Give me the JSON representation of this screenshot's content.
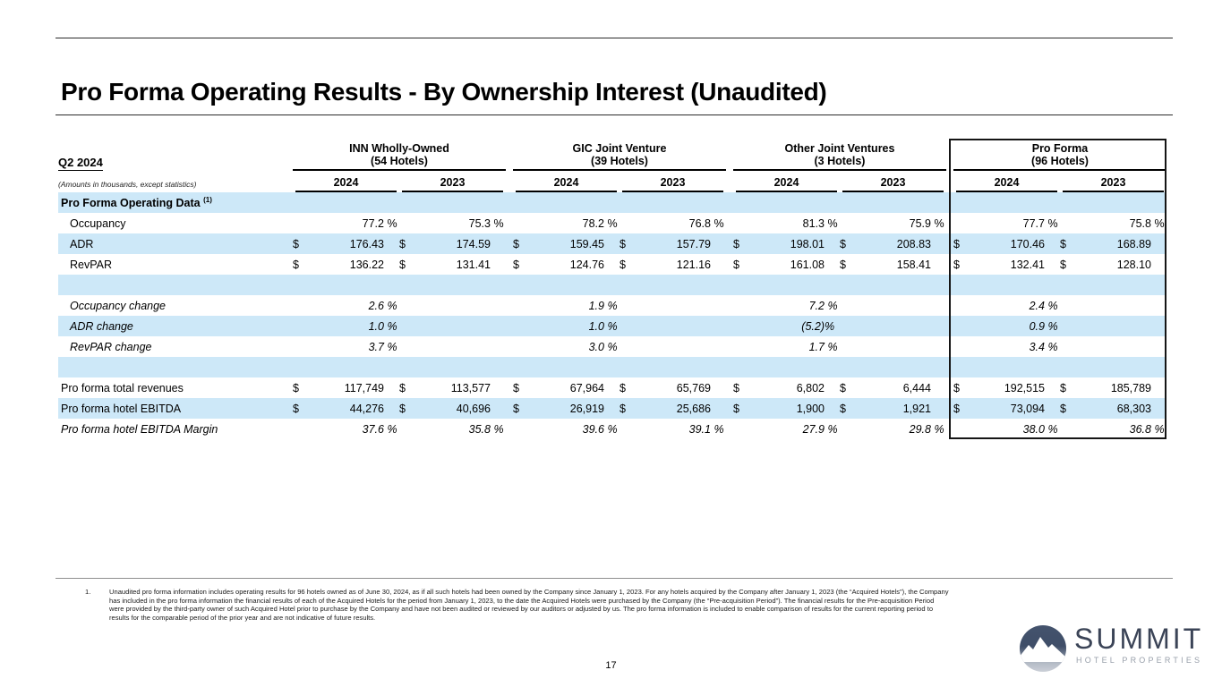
{
  "page": {
    "title": "Pro Forma Operating Results - By Ownership Interest (Unaudited)",
    "page_number": "17"
  },
  "colors": {
    "row_shade": "#cde8f8",
    "logo_navy": "#3e4d68",
    "logo_gray": "#99a0ab"
  },
  "table": {
    "period_label": "Q2 2024",
    "amounts_note": "(Amounts in thousands, except statistics)",
    "year_headers": [
      "2024",
      "2023"
    ],
    "groups": [
      {
        "name": "INN Wholly-Owned",
        "hotels": "(54 Hotels)",
        "boxed": false
      },
      {
        "name": "GIC Joint Venture",
        "hotels": "(39 Hotels)",
        "boxed": false
      },
      {
        "name": "Other Joint Ventures",
        "hotels": "(3 Hotels)",
        "boxed": false
      },
      {
        "name": "Pro Forma",
        "hotels": "(96 Hotels)",
        "boxed": true
      }
    ],
    "rows": [
      {
        "label": "Pro Forma Operating Data",
        "sup": "(1)",
        "section": true,
        "shade": true,
        "indent": false,
        "italic": false,
        "cells": []
      },
      {
        "label": "Occupancy",
        "shade": false,
        "indent": true,
        "italic": false,
        "cells": [
          {
            "v": "77.2",
            "s": " %"
          },
          {
            "v": "75.3",
            "s": " %"
          },
          {
            "v": "78.2",
            "s": " %"
          },
          {
            "v": "76.8",
            "s": " %"
          },
          {
            "v": "81.3",
            "s": " %"
          },
          {
            "v": "75.9",
            "s": " %"
          },
          {
            "v": "77.7",
            "s": " %"
          },
          {
            "v": "75.8",
            "s": " %"
          }
        ]
      },
      {
        "label": "ADR",
        "shade": true,
        "indent": true,
        "italic": false,
        "cells": [
          {
            "d": "$",
            "v": "176.43"
          },
          {
            "d": "$",
            "v": "174.59"
          },
          {
            "d": "$",
            "v": "159.45"
          },
          {
            "d": "$",
            "v": "157.79"
          },
          {
            "d": "$",
            "v": "198.01"
          },
          {
            "d": "$",
            "v": "208.83"
          },
          {
            "d": "$",
            "v": "170.46"
          },
          {
            "d": "$",
            "v": "168.89"
          }
        ]
      },
      {
        "label": "RevPAR",
        "shade": false,
        "indent": true,
        "italic": false,
        "cells": [
          {
            "d": "$",
            "v": "136.22"
          },
          {
            "d": "$",
            "v": "131.41"
          },
          {
            "d": "$",
            "v": "124.76"
          },
          {
            "d": "$",
            "v": "121.16"
          },
          {
            "d": "$",
            "v": "161.08"
          },
          {
            "d": "$",
            "v": "158.41"
          },
          {
            "d": "$",
            "v": "132.41"
          },
          {
            "d": "$",
            "v": "128.10"
          }
        ]
      },
      {
        "label": "",
        "shade": true,
        "indent": false,
        "italic": false,
        "cells": []
      },
      {
        "label": "Occupancy change",
        "shade": false,
        "indent": true,
        "italic": true,
        "cells": [
          {
            "v": "2.6",
            "s": " %"
          },
          null,
          {
            "v": "1.9",
            "s": " %"
          },
          null,
          {
            "v": "7.2",
            "s": " %"
          },
          null,
          {
            "v": "2.4",
            "s": " %"
          },
          null
        ]
      },
      {
        "label": "ADR change",
        "shade": true,
        "indent": true,
        "italic": true,
        "cells": [
          {
            "v": "1.0",
            "s": " %"
          },
          null,
          {
            "v": "1.0",
            "s": " %"
          },
          null,
          {
            "v": "(5.2)",
            "s": "%"
          },
          null,
          {
            "v": "0.9",
            "s": " %"
          },
          null
        ]
      },
      {
        "label": "RevPAR change",
        "shade": false,
        "indent": true,
        "italic": true,
        "cells": [
          {
            "v": "3.7",
            "s": " %"
          },
          null,
          {
            "v": "3.0",
            "s": " %"
          },
          null,
          {
            "v": "1.7",
            "s": " %"
          },
          null,
          {
            "v": "3.4",
            "s": " %"
          },
          null
        ]
      },
      {
        "label": "",
        "shade": true,
        "indent": false,
        "italic": false,
        "cells": []
      },
      {
        "label": "Pro forma total revenues",
        "shade": false,
        "indent": false,
        "italic": false,
        "cells": [
          {
            "d": "$",
            "v": "117,749"
          },
          {
            "d": "$",
            "v": "113,577"
          },
          {
            "d": "$",
            "v": "67,964"
          },
          {
            "d": "$",
            "v": "65,769"
          },
          {
            "d": "$",
            "v": "6,802"
          },
          {
            "d": "$",
            "v": "6,444"
          },
          {
            "d": "$",
            "v": "192,515"
          },
          {
            "d": "$",
            "v": "185,789"
          }
        ]
      },
      {
        "label": "Pro forma hotel EBITDA",
        "shade": true,
        "indent": false,
        "italic": false,
        "cells": [
          {
            "d": "$",
            "v": "44,276"
          },
          {
            "d": "$",
            "v": "40,696"
          },
          {
            "d": "$",
            "v": "26,919"
          },
          {
            "d": "$",
            "v": "25,686"
          },
          {
            "d": "$",
            "v": "1,900"
          },
          {
            "d": "$",
            "v": "1,921"
          },
          {
            "d": "$",
            "v": "73,094"
          },
          {
            "d": "$",
            "v": "68,303"
          }
        ]
      },
      {
        "label": "Pro forma hotel EBITDA Margin",
        "shade": false,
        "indent": false,
        "italic": true,
        "cells": [
          {
            "v": "37.6",
            "s": " %"
          },
          {
            "v": "35.8",
            "s": " %"
          },
          {
            "v": "39.6",
            "s": " %"
          },
          {
            "v": "39.1",
            "s": " %"
          },
          {
            "v": "27.9",
            "s": " %"
          },
          {
            "v": "29.8",
            "s": " %"
          },
          {
            "v": "38.0",
            "s": " %"
          },
          {
            "v": "36.8",
            "s": " %"
          }
        ]
      }
    ]
  },
  "footnote": {
    "number": "1.",
    "text": "Unaudited pro forma information includes operating results for 96 hotels owned as of June 30, 2024, as if all such hotels had been owned by the Company since January 1, 2023. For any hotels acquired by the Company after January 1, 2023 (the “Acquired Hotels”), the Company has included in the pro forma information the financial results of each of the Acquired Hotels for the period from January 1, 2023, to the date the Acquired Hotels were purchased by the Company (the “Pre-acquisition Period”). The financial results for the Pre-acquisition Period were provided by the third-party owner of such Acquired Hotel prior to purchase by the Company and have not been audited or reviewed by our auditors or adjusted by us. The pro forma information is included to enable comparison of results for the current reporting period to results for the comparable period of the prior year and are not indicative of future results."
  },
  "logo": {
    "name": "SUMMIT",
    "subtitle": "HOTEL PROPERTIES"
  }
}
